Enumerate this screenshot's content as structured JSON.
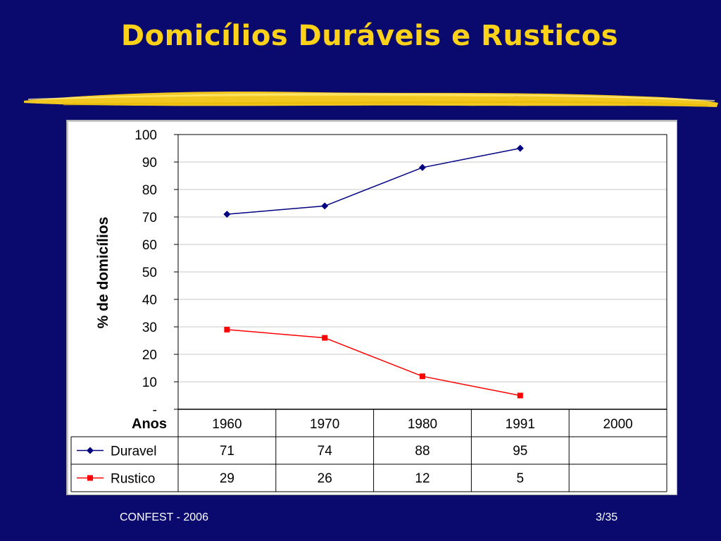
{
  "slide": {
    "title": "Domicílios Duráveis e Rusticos",
    "footer_left": "CONFEST - 2006",
    "footer_right": "3/35"
  },
  "colors": {
    "background": "#0a0a6e",
    "title": "#ffd21a",
    "brush": "#ffd21a",
    "duravel": "#000080",
    "rustico": "#ff0000"
  },
  "chart_data": {
    "type": "line",
    "ylabel": "% de domicílios",
    "xlabel": "Anos",
    "ylim": [
      0,
      100
    ],
    "yticks": [
      "-",
      "10",
      "20",
      "30",
      "40",
      "50",
      "60",
      "70",
      "80",
      "90",
      "100"
    ],
    "categories": [
      "1960",
      "1970",
      "1980",
      "1991",
      "2000"
    ],
    "grid": true,
    "legend": "data-table",
    "series": [
      {
        "name": "Duravel",
        "marker": "diamond",
        "values": [
          71,
          74,
          88,
          95,
          null
        ],
        "labels": [
          "71",
          "74",
          "88",
          "95",
          ""
        ]
      },
      {
        "name": "Rustico",
        "marker": "square",
        "values": [
          29,
          26,
          12,
          5,
          null
        ],
        "labels": [
          "29",
          "26",
          "12",
          "5",
          ""
        ]
      }
    ]
  }
}
